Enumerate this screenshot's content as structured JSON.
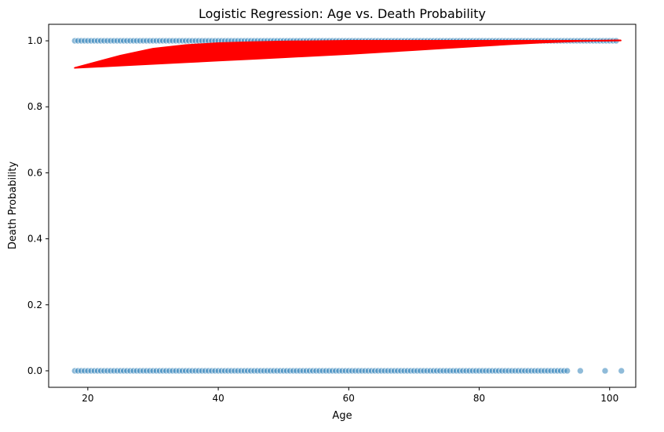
{
  "chart_data": {
    "type": "scatter",
    "title": "Logistic Regression: Age vs. Death Probability",
    "xlabel": "Age",
    "ylabel": "Death Probability",
    "xlim": [
      14,
      104
    ],
    "ylim": [
      -0.05,
      1.05
    ],
    "xticks": [
      20,
      40,
      60,
      80,
      100
    ],
    "xtick_labels": [
      "20",
      "40",
      "60",
      "80",
      "100"
    ],
    "yticks": [
      0.0,
      0.2,
      0.4,
      0.6,
      0.8,
      1.0
    ],
    "ytick_labels": [
      "0.0",
      "0.2",
      "0.4",
      "0.6",
      "0.8",
      "1.0"
    ],
    "grid": false,
    "legend": false,
    "colors": {
      "points": "#1f77b4",
      "curve": "#ff0000"
    },
    "series": [
      {
        "kind": "scatter",
        "y": 1,
        "x": [
          18,
          18.5,
          19,
          19.5,
          20,
          20.5,
          21,
          21.5,
          22,
          22.5,
          23,
          23.5,
          24,
          24.5,
          25,
          25.5,
          26,
          26.5,
          27,
          27.5,
          28,
          28.5,
          29,
          29.5,
          30,
          30.5,
          31,
          31.5,
          32,
          32.5,
          33,
          33.5,
          34,
          34.5,
          35,
          35.5,
          36,
          36.5,
          37,
          37.5,
          38,
          38.5,
          39,
          39.5,
          40,
          40.5,
          41,
          41.5,
          42,
          42.5,
          43,
          43.5,
          44,
          44.5,
          45,
          45.5,
          46,
          46.5,
          47,
          47.5,
          48,
          48.5,
          49,
          49.5,
          50,
          50.5,
          51,
          51.5,
          52,
          52.5,
          53,
          53.5,
          54,
          54.5,
          55,
          55.5,
          56,
          56.5,
          57,
          57.5,
          58,
          58.5,
          59,
          59.5,
          60,
          60.5,
          61,
          61.5,
          62,
          62.5,
          63,
          63.5,
          64,
          64.5,
          65,
          65.5,
          66,
          66.5,
          67,
          67.5,
          68,
          68.5,
          69,
          69.5,
          70,
          70.5,
          71,
          71.5,
          72,
          72.5,
          73,
          73.5,
          74,
          74.5,
          75,
          75.5,
          76,
          76.5,
          77,
          77.5,
          78,
          78.5,
          79,
          79.5,
          80,
          80.5,
          81,
          81.5,
          82,
          82.5,
          83,
          83.5,
          84,
          84.5,
          85,
          85.5,
          86,
          86.5,
          87,
          87.5,
          88,
          88.5,
          89,
          89.5,
          90,
          90.5,
          91,
          91.5,
          92,
          92.5,
          93,
          93.5,
          94,
          94.5,
          95,
          95.5,
          96,
          96.5,
          97,
          97.5,
          98,
          98.5,
          99,
          99.5,
          100,
          100.5,
          101
        ]
      },
      {
        "kind": "scatter",
        "y": 0,
        "x": [
          18,
          18.5,
          19,
          19.5,
          20,
          20.5,
          21,
          21.5,
          22,
          22.5,
          23,
          23.5,
          24,
          24.5,
          25,
          25.5,
          26,
          26.5,
          27,
          27.5,
          28,
          28.5,
          29,
          29.5,
          30,
          30.5,
          31,
          31.5,
          32,
          32.5,
          33,
          33.5,
          34,
          34.5,
          35,
          35.5,
          36,
          36.5,
          37,
          37.5,
          38,
          38.5,
          39,
          39.5,
          40,
          40.5,
          41,
          41.5,
          42,
          42.5,
          43,
          43.5,
          44,
          44.5,
          45,
          45.5,
          46,
          46.5,
          47,
          47.5,
          48,
          48.5,
          49,
          49.5,
          50,
          50.5,
          51,
          51.5,
          52,
          52.5,
          53,
          53.5,
          54,
          54.5,
          55,
          55.5,
          56,
          56.5,
          57,
          57.5,
          58,
          58.5,
          59,
          59.5,
          60,
          60.5,
          61,
          61.5,
          62,
          62.5,
          63,
          63.5,
          64,
          64.5,
          65,
          65.5,
          66,
          66.5,
          67,
          67.5,
          68,
          68.5,
          69,
          69.5,
          70,
          70.5,
          71,
          71.5,
          72,
          72.5,
          73,
          73.5,
          74,
          74.5,
          75,
          75.5,
          76,
          76.5,
          77,
          77.5,
          78,
          78.5,
          79,
          79.5,
          80,
          80.5,
          81,
          81.5,
          82,
          82.5,
          83,
          83.5,
          84,
          84.5,
          85,
          85.5,
          86,
          86.5,
          87,
          87.5,
          88,
          88.5,
          89,
          89.5,
          90,
          90.5,
          91,
          91.5,
          92,
          92.5,
          93,
          93.5,
          95.5,
          99.3,
          101.8
        ]
      },
      {
        "kind": "area",
        "x": [
          18,
          25,
          30,
          35,
          40,
          45,
          50,
          55,
          60,
          65,
          70,
          75,
          80,
          85,
          90,
          95,
          101.7
        ],
        "lower": [
          0.918,
          0.925,
          0.93,
          0.935,
          0.94,
          0.945,
          0.95,
          0.955,
          0.96,
          0.966,
          0.972,
          0.978,
          0.984,
          0.99,
          0.995,
          0.999,
          1.001
        ],
        "upper": [
          0.918,
          0.955,
          0.976,
          0.987,
          0.993,
          0.996,
          0.998,
          0.999,
          1.0,
          1.0,
          1.0,
          1.0,
          1.0,
          1.0,
          1.0,
          1.0,
          1.001
        ]
      }
    ]
  }
}
